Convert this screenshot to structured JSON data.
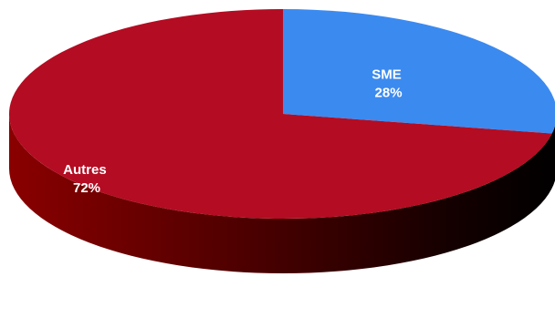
{
  "chart_data": {
    "type": "pie",
    "style": "3d",
    "start_angle": "12 o'clock",
    "direction": "clockwise",
    "legend": "none",
    "slices": [
      {
        "label": "SME",
        "value": 28,
        "value_label": "28%",
        "color": "#3b8af0",
        "side_color": "#1f4f96"
      },
      {
        "label": "Autres",
        "value": 72,
        "value_label": "72%",
        "color": "#b40c22",
        "side_color": "#6a0000"
      }
    ]
  }
}
